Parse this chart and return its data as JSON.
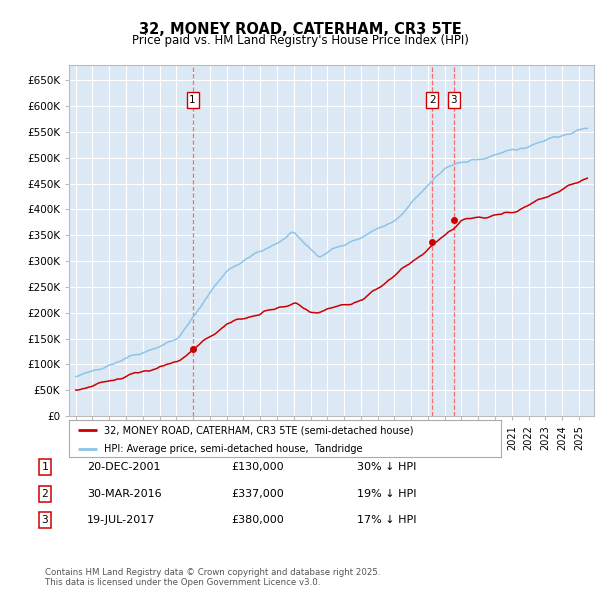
{
  "title": "32, MONEY ROAD, CATERHAM, CR3 5TE",
  "subtitle": "Price paid vs. HM Land Registry's House Price Index (HPI)",
  "background_color": "#dce9f5",
  "sale_color": "#cc0000",
  "hpi_color": "#8ec4e8",
  "vline_color": "#ff5555",
  "marker_color": "#cc0000",
  "ylim": [
    0,
    680000
  ],
  "yticks": [
    0,
    50000,
    100000,
    150000,
    200000,
    250000,
    300000,
    350000,
    400000,
    450000,
    500000,
    550000,
    600000,
    650000
  ],
  "ytick_labels": [
    "£0",
    "£50K",
    "£100K",
    "£150K",
    "£200K",
    "£250K",
    "£300K",
    "£350K",
    "£400K",
    "£450K",
    "£500K",
    "£550K",
    "£600K",
    "£650K"
  ],
  "sale_dates": [
    2001.97,
    2016.25,
    2017.55
  ],
  "sale_prices": [
    130000,
    337000,
    380000
  ],
  "sale_labels": [
    "1",
    "2",
    "3"
  ],
  "legend_sale_label": "32, MONEY ROAD, CATERHAM, CR3 5TE (semi-detached house)",
  "legend_hpi_label": "HPI: Average price, semi-detached house,  Tandridge",
  "table_entries": [
    {
      "num": "1",
      "date": "20-DEC-2001",
      "price": "£130,000",
      "pct": "30% ↓ HPI"
    },
    {
      "num": "2",
      "date": "30-MAR-2016",
      "price": "£337,000",
      "pct": "19% ↓ HPI"
    },
    {
      "num": "3",
      "date": "19-JUL-2017",
      "price": "£380,000",
      "pct": "17% ↓ HPI"
    }
  ],
  "footer": "Contains HM Land Registry data © Crown copyright and database right 2025.\nThis data is licensed under the Open Government Licence v3.0."
}
